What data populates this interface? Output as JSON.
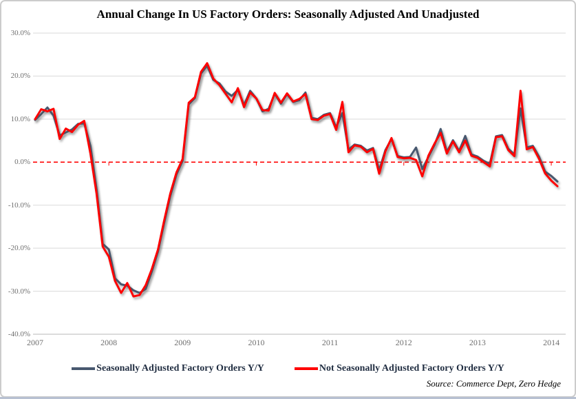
{
  "chart": {
    "title": "Annual Change In US Factory Orders: Seasonally Adjusted And Unadjusted",
    "source": "Source: Commerce Dept, Zero Hedge"
  },
  "chart_data": {
    "type": "line",
    "title": "Annual Change In US Factory Orders: Seasonally Adjusted And Unadjusted",
    "xlabel": "",
    "ylabel": "",
    "grid": true,
    "legend_position": "bottom",
    "x_axis": {
      "unit": "monthly",
      "tick_labels": [
        "2007",
        "2008",
        "2009",
        "2010",
        "2011",
        "2012",
        "2013",
        "2014"
      ]
    },
    "y_axis": {
      "min": -40,
      "max": 30,
      "unit": "percent",
      "tick_labels": [
        "30.0%",
        "20.0%",
        "10.0%",
        "0.0%",
        "-10.0%",
        "-20.0%",
        "-30.0%",
        "-40.0%"
      ]
    },
    "zero_line": {
      "value": 0,
      "color": "#ff0000",
      "style": "dashed"
    },
    "months": [
      "2007-01",
      "2007-02",
      "2007-03",
      "2007-04",
      "2007-05",
      "2007-06",
      "2007-07",
      "2007-08",
      "2007-09",
      "2007-10",
      "2007-11",
      "2007-12",
      "2008-01",
      "2008-02",
      "2008-03",
      "2008-04",
      "2008-05",
      "2008-06",
      "2008-07",
      "2008-08",
      "2008-09",
      "2008-10",
      "2008-11",
      "2008-12",
      "2009-01",
      "2009-02",
      "2009-03",
      "2009-04",
      "2009-05",
      "2009-06",
      "2009-07",
      "2009-08",
      "2009-09",
      "2009-10",
      "2009-11",
      "2009-12",
      "2010-01",
      "2010-02",
      "2010-03",
      "2010-04",
      "2010-05",
      "2010-06",
      "2010-07",
      "2010-08",
      "2010-09",
      "2010-10",
      "2010-11",
      "2010-12",
      "2011-01",
      "2011-02",
      "2011-03",
      "2011-04",
      "2011-05",
      "2011-06",
      "2011-07",
      "2011-08",
      "2011-09",
      "2011-10",
      "2011-11",
      "2011-12",
      "2012-01",
      "2012-02",
      "2012-03",
      "2012-04",
      "2012-05",
      "2012-06",
      "2012-07",
      "2012-08",
      "2012-09",
      "2012-10",
      "2012-11",
      "2012-12",
      "2013-01",
      "2013-02",
      "2013-03",
      "2013-04",
      "2013-05",
      "2013-06",
      "2013-07",
      "2013-08",
      "2013-09",
      "2013-10",
      "2013-11",
      "2013-12",
      "2014-01",
      "2014-02"
    ],
    "series": [
      {
        "name": "Seasonally Adjusted Factory Orders Y/Y",
        "color": "#48586f",
        "values": [
          9.8,
          11.2,
          12.7,
          10.8,
          6.2,
          6.9,
          7.6,
          8.9,
          9.0,
          3.8,
          -6.3,
          -19.0,
          -20.3,
          -27.0,
          -28.4,
          -28.7,
          -29.8,
          -30.4,
          -29.5,
          -25.4,
          -20.8,
          -14.2,
          -7.9,
          -2.9,
          0.3,
          13.4,
          14.9,
          20.6,
          22.4,
          19.1,
          18.3,
          16.4,
          15.4,
          16.8,
          13.3,
          16.6,
          14.8,
          11.8,
          12.4,
          15.9,
          13.6,
          15.8,
          14.0,
          14.4,
          16.2,
          10.3,
          10.0,
          11.0,
          11.4,
          8.1,
          11.4,
          2.9,
          4.1,
          3.8,
          2.7,
          3.3,
          -1.9,
          2.8,
          5.4,
          1.4,
          1.1,
          1.2,
          3.4,
          -1.6,
          1.2,
          4.0,
          7.7,
          2.4,
          5.1,
          2.6,
          6.1,
          1.8,
          1.3,
          0.3,
          -0.4,
          6.0,
          6.3,
          3.1,
          1.8,
          12.5,
          3.4,
          3.8,
          1.3,
          -2.2,
          -3.2,
          -4.5
        ]
      },
      {
        "name": "Not Seasonally Adjusted Factory Orders Y/Y",
        "color": "#ff0000",
        "values": [
          10.0,
          12.3,
          11.8,
          12.4,
          5.4,
          7.8,
          7.0,
          8.7,
          9.6,
          2.0,
          -7.3,
          -19.6,
          -22.0,
          -27.6,
          -30.4,
          -28.1,
          -31.2,
          -30.9,
          -28.6,
          -24.8,
          -20.3,
          -13.6,
          -7.3,
          -2.4,
          0.7,
          13.8,
          15.1,
          21.0,
          23.0,
          19.4,
          17.9,
          15.9,
          13.9,
          17.2,
          12.8,
          16.2,
          14.8,
          12.1,
          12.0,
          16.1,
          13.8,
          16.0,
          14.1,
          14.7,
          15.8,
          10.0,
          9.8,
          10.8,
          11.2,
          7.5,
          14.0,
          2.3,
          3.9,
          3.6,
          2.3,
          3.1,
          -2.7,
          2.5,
          5.6,
          1.2,
          0.9,
          1.0,
          0.5,
          -3.3,
          1.5,
          4.3,
          6.8,
          2.0,
          4.8,
          2.3,
          5.0,
          1.5,
          1.0,
          0.0,
          -1.0,
          5.8,
          6.0,
          2.8,
          1.4,
          16.6,
          3.0,
          3.5,
          0.8,
          -2.6,
          -4.3,
          -5.6
        ]
      }
    ]
  }
}
